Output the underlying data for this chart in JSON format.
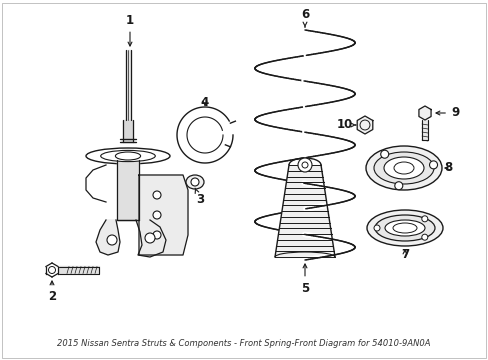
{
  "title": "2015 Nissan Sentra Struts & Components - Front Spring-Front Diagram for 54010-9AN0A",
  "background_color": "#ffffff",
  "line_color": "#1a1a1a",
  "fig_width": 4.89,
  "fig_height": 3.6,
  "dpi": 100,
  "label_fontsize": 8.5,
  "title_fontsize": 6.0
}
